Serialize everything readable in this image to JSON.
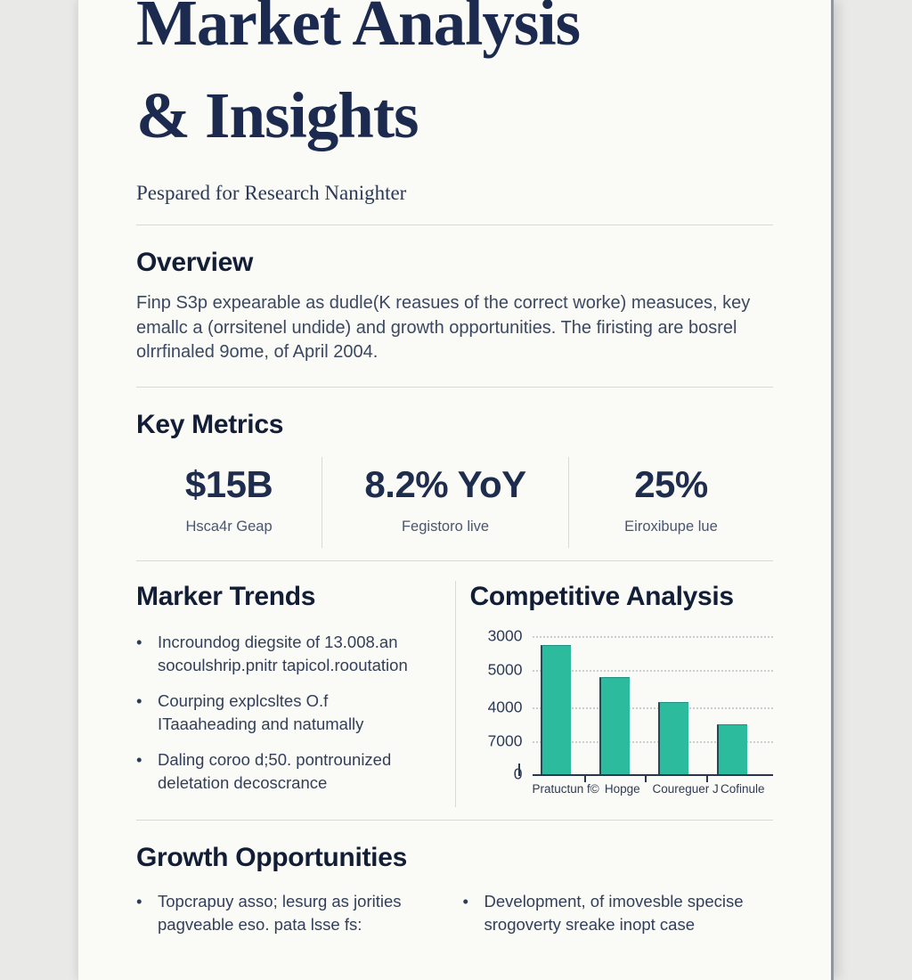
{
  "colors": {
    "accent_bar": "#2cbc9d",
    "title_navy": "#1b2a4e",
    "page_background": "#fafaf6",
    "canvas_background": "#e9e9e8"
  },
  "header": {
    "title_line1": "Market Analysis",
    "title_line2": "& Insights",
    "subtitle": "Pespared for Research Nanighter"
  },
  "overview": {
    "heading": "Overview",
    "body": "Finp S3p expearable as dudle(K reasues of the correct worke) measuces, key\nemallc a (orrsitenel undide) and growth opportunities. The firisting are bosrel\nolrrfinaled 9ome, of April 2004."
  },
  "key_metrics": {
    "heading": "Key Metrics",
    "items": [
      {
        "value": "$15B",
        "label": "Hsca4r Geap"
      },
      {
        "value": "8.2% YoY",
        "label": "Fegistoro live"
      },
      {
        "value": "25%",
        "label": "Eiroxibupe lue"
      }
    ]
  },
  "market_trends": {
    "heading": "Marker Trends",
    "bullets": [
      "Incroundog diegsite of 13.008.an\nsocoulshrip.pnitr tapicol.rooutation",
      "Courping explcsltes O.f\nITaaaheading and natumally",
      "Daling coroo d;50. pontrounized\ndeletation decoscrance"
    ]
  },
  "competitive_analysis": {
    "heading": "Competitive Analysis"
  },
  "chart_data": {
    "type": "bar",
    "title": "Competitive Analysis",
    "categories": [
      "Pratuctun f©",
      "Hopge",
      "Coureguer J",
      "Cofinule"
    ],
    "values_pct": [
      88,
      66,
      49,
      34
    ],
    "y_tick_labels_top_to_bottom": [
      "3000",
      "5000",
      "4000",
      "7000"
    ],
    "y_zero_label": "0",
    "axis_note": "tick labels reproduced as printed (decorative, non-monotonic)",
    "bar_color": "#2cbc9d",
    "grid": "horizontal dotted lines",
    "legend": "none"
  },
  "growth_opportunities": {
    "heading": "Growth Opportunities",
    "bullets_left": [
      "Topcrapuy asso; lesurg as jorities\npagveable eso. pata lsse fs:"
    ],
    "bullets_right": [
      "Development, of imovesble specise\nsrogoverty sreake inopt case"
    ]
  }
}
